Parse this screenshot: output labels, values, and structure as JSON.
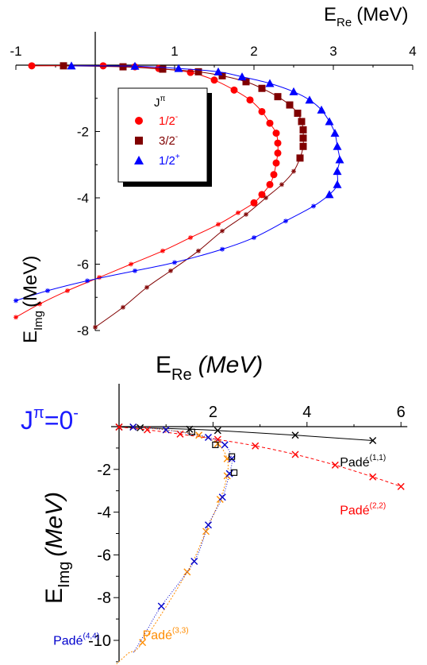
{
  "chart_data": [
    {
      "type": "scatter",
      "xlabel_main": "E",
      "xlabel_sub": "Re",
      "xlabel_unit": "(MeV)",
      "ylabel_main": "E",
      "ylabel_sub": "Img",
      "ylabel_unit": "(MeV)",
      "xlim": [
        -1,
        4
      ],
      "ylim": [
        -8,
        0
      ],
      "xticks": [
        -1,
        1,
        2,
        3,
        4
      ],
      "yticks": [
        -2,
        -4,
        -6,
        -8
      ],
      "legend": {
        "title_main": "J",
        "title_sup": "π",
        "placement": "upper-left inside",
        "entries": [
          {
            "label_main": "1/2",
            "label_sup": "-",
            "color": "#ff0000",
            "marker": "circle"
          },
          {
            "label_main": "3/2",
            "label_sup": "-",
            "color": "#800000",
            "marker": "square"
          },
          {
            "label_main": "1/2",
            "label_sup": "+",
            "color": "#0000ff",
            "marker": "triangle"
          }
        ]
      },
      "series": [
        {
          "color": "#ff0000",
          "marker": "circle",
          "points": [
            [
              -0.8,
              -0.02
            ],
            [
              0.1,
              -0.02
            ],
            [
              0.5,
              -0.05
            ],
            [
              0.8,
              -0.1
            ],
            [
              1.2,
              -0.22
            ],
            [
              1.5,
              -0.45
            ],
            [
              1.75,
              -0.75
            ],
            [
              1.95,
              -1.05
            ],
            [
              2.1,
              -1.4
            ],
            [
              2.2,
              -1.75
            ],
            [
              2.28,
              -2.05
            ],
            [
              2.3,
              -2.35
            ],
            [
              2.3,
              -2.65
            ],
            [
              2.28,
              -2.95
            ],
            [
              2.25,
              -3.3
            ],
            [
              2.2,
              -3.6
            ],
            [
              2.1,
              -3.9
            ],
            [
              2.0,
              -4.15
            ]
          ],
          "curve_tail": [
            [
              1.8,
              -4.45
            ],
            [
              1.55,
              -4.8
            ],
            [
              1.2,
              -5.2
            ],
            [
              0.85,
              -5.6
            ],
            [
              0.45,
              -6.0
            ],
            [
              0.05,
              -6.4
            ],
            [
              -0.35,
              -6.8
            ],
            [
              -0.7,
              -7.2
            ],
            [
              -1.0,
              -7.6
            ]
          ]
        },
        {
          "color": "#800000",
          "marker": "square",
          "points": [
            [
              -0.4,
              -0.02
            ],
            [
              0.35,
              -0.05
            ],
            [
              0.85,
              -0.12
            ],
            [
              1.3,
              -0.2
            ],
            [
              1.6,
              -0.32
            ],
            [
              1.9,
              -0.5
            ],
            [
              2.1,
              -0.7
            ],
            [
              2.3,
              -0.95
            ],
            [
              2.45,
              -1.2
            ],
            [
              2.55,
              -1.45
            ],
            [
              2.6,
              -1.7
            ],
            [
              2.62,
              -1.95
            ],
            [
              2.62,
              -2.2
            ],
            [
              2.62,
              -2.45
            ],
            [
              2.58,
              -2.8
            ]
          ],
          "curve_tail": [
            [
              2.5,
              -3.2
            ],
            [
              2.35,
              -3.6
            ],
            [
              2.15,
              -4.0
            ],
            [
              1.9,
              -4.5
            ],
            [
              1.6,
              -5.0
            ],
            [
              1.3,
              -5.6
            ],
            [
              0.95,
              -6.2
            ],
            [
              0.65,
              -6.7
            ],
            [
              0.35,
              -7.3
            ],
            [
              0.0,
              -7.9
            ]
          ]
        },
        {
          "color": "#0000ff",
          "marker": "triangle",
          "points": [
            [
              -0.3,
              -0.02
            ],
            [
              0.5,
              -0.03
            ],
            [
              1.05,
              -0.1
            ],
            [
              1.55,
              -0.2
            ],
            [
              1.85,
              -0.35
            ],
            [
              2.2,
              -0.55
            ],
            [
              2.5,
              -0.8
            ],
            [
              2.7,
              -1.05
            ],
            [
              2.85,
              -1.35
            ],
            [
              2.95,
              -1.7
            ],
            [
              3.02,
              -2.05
            ],
            [
              3.05,
              -2.45
            ],
            [
              3.08,
              -2.85
            ],
            [
              3.05,
              -3.2
            ],
            [
              3.05,
              -3.6
            ],
            [
              2.95,
              -3.9
            ]
          ],
          "curve_tail": [
            [
              2.75,
              -4.25
            ],
            [
              2.4,
              -4.7
            ],
            [
              2.0,
              -5.2
            ],
            [
              1.6,
              -5.55
            ],
            [
              1.0,
              -5.95
            ],
            [
              0.5,
              -6.2
            ],
            [
              -0.1,
              -6.5
            ],
            [
              -0.6,
              -6.8
            ],
            [
              -1.0,
              -7.1
            ]
          ]
        }
      ]
    },
    {
      "type": "scatter",
      "xlabel_main": "E",
      "xlabel_sub": "Re",
      "xlabel_unit": "(MeV)",
      "ylabel_main": "E",
      "ylabel_sub": "Img",
      "ylabel_unit": "(MeV)",
      "title_main": "J",
      "title_sup": "π",
      "title_rest": "=0",
      "title_sup2": "-",
      "xlim": [
        0,
        6
      ],
      "ylim": [
        -10,
        0
      ],
      "xticks": [
        2,
        4,
        6
      ],
      "yticks": [
        -2,
        -4,
        -6,
        -8,
        -10
      ],
      "series": [
        {
          "label_main": "Padé",
          "label_sup": "(1,1)",
          "color": "#000000",
          "marker": "x",
          "dash": "none",
          "points": [
            [
              0.0,
              -0.02
            ],
            [
              0.45,
              -0.05
            ],
            [
              1.5,
              -0.12
            ],
            [
              2.1,
              -0.18
            ],
            [
              3.75,
              -0.4
            ],
            [
              5.4,
              -0.65
            ]
          ],
          "label_at": [
            4.7,
            -1.85
          ]
        },
        {
          "label_main": "Padé",
          "label_sup": "(2,2)",
          "color": "#ff0000",
          "marker": "x",
          "dash": "4,3",
          "points": [
            [
              0.0,
              -0.02
            ],
            [
              0.6,
              -0.15
            ],
            [
              1.3,
              -0.35
            ],
            [
              2.1,
              -0.6
            ],
            [
              2.9,
              -0.9
            ],
            [
              3.75,
              -1.3
            ],
            [
              4.6,
              -1.8
            ],
            [
              5.4,
              -2.35
            ],
            [
              6.0,
              -2.8
            ]
          ],
          "label_at": [
            4.7,
            -4.1
          ]
        },
        {
          "label_main": "Padé",
          "label_sup": "(3,3)",
          "color": "#ff8c00",
          "marker": "x",
          "dash": "2,2",
          "points": [
            [
              0.3,
              -0.02
            ],
            [
              1.0,
              -0.15
            ],
            [
              1.7,
              -0.4
            ],
            [
              2.1,
              -0.8
            ],
            [
              2.3,
              -1.5
            ],
            [
              2.3,
              -2.3
            ],
            [
              2.15,
              -3.4
            ],
            [
              1.85,
              -4.9
            ],
            [
              1.45,
              -6.8
            ],
            [
              0.5,
              -10.1
            ]
          ],
          "curve_tail": [
            [
              0.2,
              -10.6
            ],
            [
              -0.1,
              -11.2
            ]
          ],
          "label_at": [
            0.5,
            -9.95
          ]
        },
        {
          "label_main": "Padé",
          "label_sup": "(4,4)",
          "color": "#0000cc",
          "marker": "x",
          "dash": "1,2",
          "points": [
            [
              0.3,
              -0.02
            ],
            [
              1.0,
              -0.15
            ],
            [
              1.9,
              -0.5
            ],
            [
              2.25,
              -0.85
            ],
            [
              2.4,
              -1.5
            ],
            [
              2.35,
              -2.2
            ],
            [
              2.2,
              -3.3
            ],
            [
              1.9,
              -4.6
            ],
            [
              1.6,
              -6.3
            ],
            [
              0.9,
              -8.4
            ]
          ],
          "curve_tail": [
            [
              0.6,
              -9.5
            ],
            [
              0.3,
              -10.6
            ]
          ],
          "label_at": [
            -1.4,
            -10.2
          ]
        },
        {
          "label_main": "",
          "color": "#000000",
          "marker": "open-square",
          "dash": "none",
          "points": [
            [
              1.55,
              -0.25
            ],
            [
              2.05,
              -0.85
            ],
            [
              2.4,
              -1.4
            ],
            [
              2.45,
              -2.15
            ]
          ]
        }
      ]
    }
  ]
}
